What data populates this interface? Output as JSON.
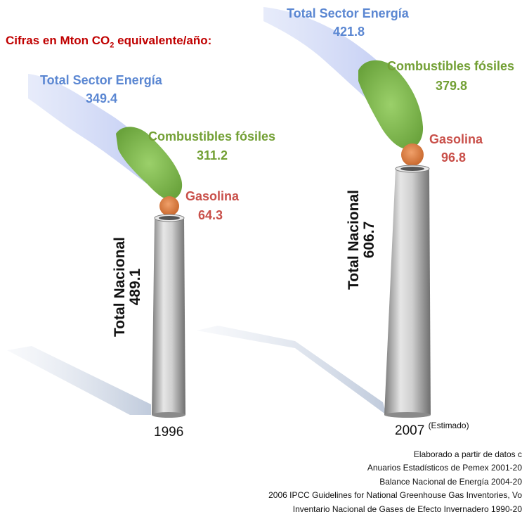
{
  "header": {
    "units_label_prefix": "Cifras en Mton CO",
    "units_label_sub": "2",
    "units_label_suffix": " equivalente/año:"
  },
  "stacks": [
    {
      "year": "1996",
      "year_note": "",
      "total_label": "Total Nacional",
      "total_value": "489.1",
      "energy_label": "Total Sector Energía",
      "energy_value": "349.4",
      "fossil_label": "Combustibles fósiles",
      "fossil_value": "311.2",
      "gasoline_label": "Gasolina",
      "gasoline_value": "64.3"
    },
    {
      "year": "2007",
      "year_note": "(Estimado)",
      "total_label": "Total Nacional",
      "total_value": "606.7",
      "energy_label": "Total Sector Energía",
      "energy_value": "421.8",
      "fossil_label": "Combustibles fósiles",
      "fossil_value": "379.8",
      "gasoline_label": "Gasolina",
      "gasoline_value": "96.8"
    }
  ],
  "sources": [
    "Elaborado a partir de datos c",
    "Anuarios Estadísticos de Pemex 2001-20",
    "Balance Nacional de Energía 2004-20",
    "2006 IPCC Guidelines for National Greenhouse Gas Inventories, Vo",
    "Inventario Nacional de Gases de Efecto Invernadero 1990-20"
  ],
  "colors": {
    "energy": "#5b87d2",
    "fossil": "#73a035",
    "gasoline": "#c9504a",
    "title": "#c00000"
  }
}
